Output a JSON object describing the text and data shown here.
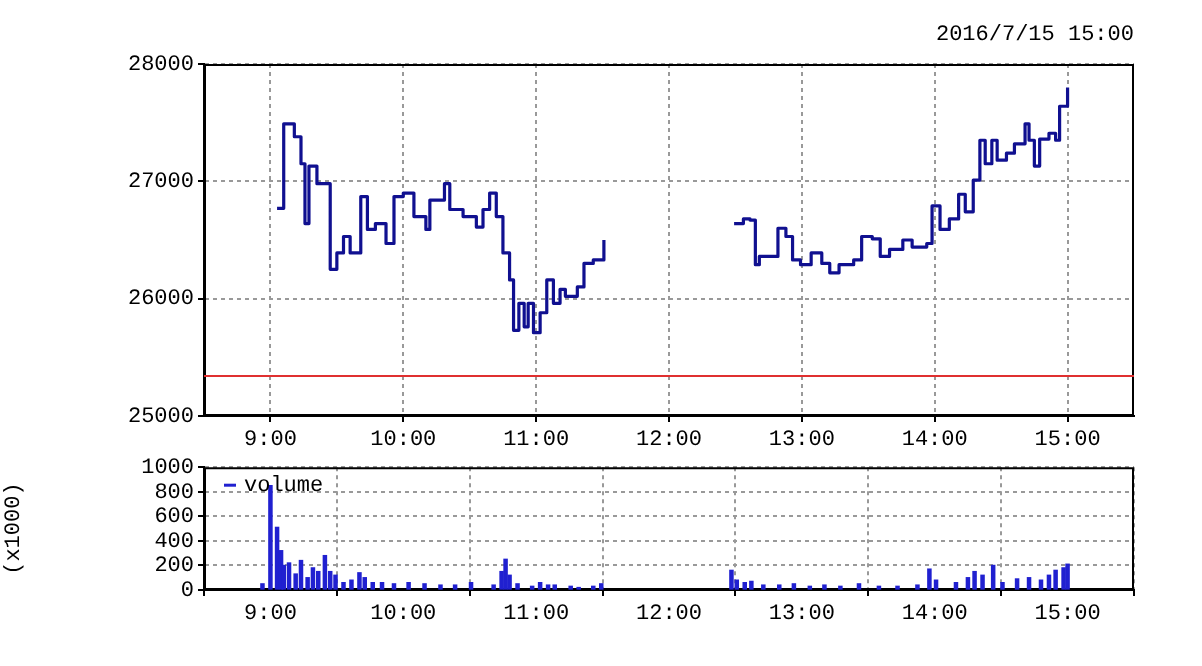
{
  "chart_data": [
    {
      "type": "step",
      "subtitle": "2016/7/15 15:00",
      "color": "#101090",
      "x": [
        9.05,
        9.1,
        9.18,
        9.23,
        9.26,
        9.29,
        9.35,
        9.4,
        9.45,
        9.5,
        9.55,
        9.6,
        9.68,
        9.73,
        9.79,
        9.87,
        9.93,
        10.0,
        10.08,
        10.17,
        10.2,
        10.28,
        10.31,
        10.35,
        10.45,
        10.55,
        10.6,
        10.65,
        10.7,
        10.75,
        10.8,
        10.83,
        10.87,
        10.91,
        10.94,
        10.98,
        11.03,
        11.08,
        11.13,
        11.18,
        11.22,
        11.31,
        11.36,
        11.43,
        11.51,
        12.0,
        12.49,
        12.56,
        12.61,
        12.65,
        12.68,
        12.76,
        12.82,
        12.88,
        12.93,
        12.99,
        13.07,
        13.15,
        13.21,
        13.28,
        13.39,
        13.45,
        13.53,
        13.59,
        13.66,
        13.76,
        13.83,
        13.94,
        13.98,
        14.04,
        14.11,
        14.18,
        14.23,
        14.29,
        14.34,
        14.38,
        14.43,
        14.47,
        14.54,
        14.6,
        14.68,
        14.71,
        14.75,
        14.79,
        14.86,
        14.91,
        14.94,
        15.0
      ],
      "values": [
        26770,
        27490,
        27380,
        27150,
        26640,
        27130,
        26980,
        26980,
        26250,
        26390,
        26530,
        26390,
        26870,
        26590,
        26640,
        26470,
        26870,
        26900,
        26700,
        26590,
        26840,
        26840,
        26980,
        26760,
        26700,
        26610,
        26760,
        26900,
        26700,
        26390,
        26160,
        25730,
        25960,
        25760,
        25960,
        25710,
        25880,
        26160,
        25960,
        26080,
        26020,
        26100,
        26300,
        26330,
        26500,
        null,
        26640,
        26680,
        26670,
        26290,
        26360,
        26360,
        26600,
        26530,
        26330,
        26290,
        26390,
        26300,
        26220,
        26290,
        26330,
        26530,
        26510,
        26360,
        26420,
        26500,
        26440,
        26470,
        26790,
        26590,
        26680,
        26890,
        26740,
        27010,
        27350,
        27150,
        27350,
        27180,
        27240,
        27320,
        27490,
        27350,
        27130,
        27360,
        27410,
        27350,
        27640,
        27800
      ],
      "xlim": [
        8.5,
        15.5
      ],
      "xticks": [
        {
          "value": 9,
          "label": "9:00"
        },
        {
          "value": 10,
          "label": "10:00"
        },
        {
          "value": 11,
          "label": "11:00"
        },
        {
          "value": 12,
          "label": "12:00"
        },
        {
          "value": 13,
          "label": "13:00"
        },
        {
          "value": 14,
          "label": "14:00"
        },
        {
          "value": 15,
          "label": "15:00"
        }
      ],
      "ylim": [
        25000,
        28000
      ],
      "yticks": [
        25000,
        26000,
        27000,
        28000
      ],
      "grid": true,
      "ref_lines": [
        {
          "axis": "y",
          "value": 25340,
          "color": "#e03030"
        }
      ]
    },
    {
      "type": "bar",
      "ylabel": "(x1000)",
      "legend": "top left",
      "x": [
        8.94,
        9.0,
        9.05,
        9.08,
        9.1,
        9.14,
        9.19,
        9.23,
        9.28,
        9.32,
        9.36,
        9.41,
        9.45,
        9.49,
        9.55,
        9.61,
        9.67,
        9.71,
        9.77,
        9.84,
        9.93,
        10.04,
        10.16,
        10.28,
        10.39,
        10.51,
        10.68,
        10.74,
        10.77,
        10.8,
        10.86,
        10.97,
        11.03,
        11.09,
        11.14,
        11.26,
        11.32,
        11.43,
        11.49,
        12.47,
        12.51,
        12.57,
        12.62,
        12.71,
        12.83,
        12.94,
        13.06,
        13.17,
        13.29,
        13.43,
        13.58,
        13.72,
        13.87,
        13.96,
        14.01,
        14.16,
        14.25,
        14.3,
        14.36,
        14.44,
        14.51,
        14.62,
        14.71,
        14.8,
        14.86,
        14.91,
        14.97,
        15.0
      ],
      "series": [
        {
          "name": "volume",
          "color": "#2020d0",
          "values": [
            50,
            850,
            510,
            320,
            200,
            220,
            130,
            240,
            100,
            180,
            150,
            280,
            150,
            120,
            60,
            80,
            140,
            100,
            60,
            60,
            50,
            60,
            50,
            40,
            40,
            60,
            40,
            150,
            250,
            120,
            50,
            30,
            60,
            40,
            40,
            30,
            20,
            30,
            50,
            160,
            80,
            60,
            70,
            40,
            40,
            50,
            30,
            40,
            30,
            50,
            30,
            30,
            40,
            170,
            80,
            60,
            100,
            150,
            120,
            200,
            60,
            90,
            100,
            80,
            120,
            160,
            180,
            210
          ]
        }
      ],
      "xlim": [
        8.5,
        15.5
      ],
      "xticks": [
        {
          "value": 9,
          "label": "9:00"
        },
        {
          "value": 10,
          "label": "10:00"
        },
        {
          "value": 11,
          "label": "11:00"
        },
        {
          "value": 12,
          "label": "12:00"
        },
        {
          "value": 13,
          "label": "13:00"
        },
        {
          "value": 14,
          "label": "14:00"
        },
        {
          "value": 15,
          "label": "15:00"
        }
      ],
      "ylim": [
        0,
        1000
      ],
      "yticks": [
        0,
        200,
        400,
        600,
        800,
        1000
      ],
      "grid": true
    }
  ]
}
